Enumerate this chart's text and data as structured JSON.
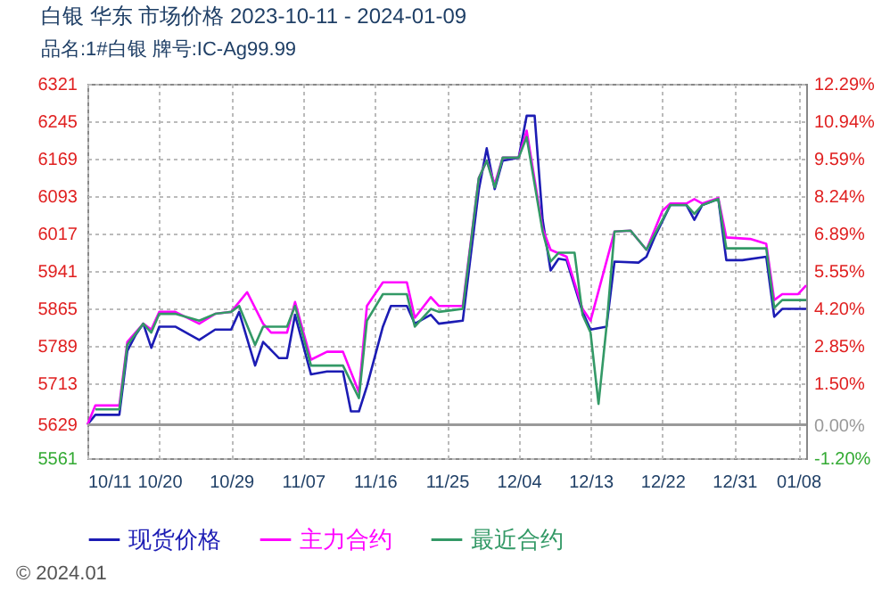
{
  "chart_data": {
    "type": "line",
    "title": "白银 华东 市场价格 2023-10-11 - 2024-01-09",
    "subtitle": "品名:1#白银 牌号:IC-Ag99.99",
    "xlim": [
      "2023-10-11",
      "2024-01-09"
    ],
    "xticks": [
      {
        "value": "2023-10-11",
        "label": "10/11"
      },
      {
        "value": "2023-10-20",
        "label": "10/20"
      },
      {
        "value": "2023-10-29",
        "label": "10/29"
      },
      {
        "value": "2023-11-07",
        "label": "11/07"
      },
      {
        "value": "2023-11-16",
        "label": "11/16"
      },
      {
        "value": "2023-11-25",
        "label": "11/25"
      },
      {
        "value": "2023-12-04",
        "label": "12/04"
      },
      {
        "value": "2023-12-13",
        "label": "12/13"
      },
      {
        "value": "2023-12-22",
        "label": "12/22"
      },
      {
        "value": "2023-12-31",
        "label": "12/31"
      },
      {
        "value": "2024-01-08",
        "label": "01/08"
      }
    ],
    "ylim": [
      5561,
      6321
    ],
    "yticks": [
      5561,
      5629,
      5713,
      5789,
      5865,
      5941,
      6017,
      6093,
      6169,
      6245,
      6321
    ],
    "y2lim": [
      -1.2,
      12.29
    ],
    "y2ticks": [
      {
        "value": -1.2,
        "label": "-1.20%"
      },
      {
        "value": 0,
        "label": "0.00%"
      },
      {
        "value": 1.5,
        "label": "1.50%"
      },
      {
        "value": 2.85,
        "label": "2.85%"
      },
      {
        "value": 4.2,
        "label": "4.20%"
      },
      {
        "value": 5.55,
        "label": "5.55%"
      },
      {
        "value": 6.89,
        "label": "6.89%"
      },
      {
        "value": 8.24,
        "label": "8.24%"
      },
      {
        "value": 9.59,
        "label": "9.59%"
      },
      {
        "value": 10.94,
        "label": "10.94%"
      },
      {
        "value": 12.29,
        "label": "12.29%"
      }
    ],
    "grid": true,
    "legend": "bottom",
    "ref_lines": [
      {
        "axis": "y",
        "value": 5629,
        "color": "#999999"
      }
    ],
    "annotations": [
      "© 2024.01"
    ],
    "series": [
      {
        "name": "现货价格",
        "color": "#1c1cb4",
        "x": [
          "2023-10-11",
          "2023-10-12",
          "2023-10-15",
          "2023-10-16",
          "2023-10-17",
          "2023-10-18",
          "2023-10-19",
          "2023-10-20",
          "2023-10-22",
          "2023-10-25",
          "2023-10-27",
          "2023-10-29",
          "2023-10-30",
          "2023-11-01",
          "2023-11-02",
          "2023-11-04",
          "2023-11-05",
          "2023-11-06",
          "2023-11-08",
          "2023-11-10",
          "2023-11-12",
          "2023-11-13",
          "2023-11-14",
          "2023-11-15",
          "2023-11-17",
          "2023-11-18",
          "2023-11-20",
          "2023-11-21",
          "2023-11-23",
          "2023-11-24",
          "2023-11-27",
          "2023-11-29",
          "2023-11-30",
          "2023-12-01",
          "2023-12-02",
          "2023-12-04",
          "2023-12-05",
          "2023-12-06",
          "2023-12-07",
          "2023-12-08",
          "2023-12-09",
          "2023-12-10",
          "2023-12-12",
          "2023-12-13",
          "2023-12-15",
          "2023-12-16",
          "2023-12-19",
          "2023-12-20",
          "2023-12-21",
          "2023-12-23",
          "2023-12-25",
          "2023-12-26",
          "2023-12-27",
          "2023-12-29",
          "2023-12-30",
          "2024-01-01",
          "2024-01-04",
          "2024-01-05",
          "2024-01-06",
          "2024-01-09"
        ],
        "values": [
          5629,
          5649,
          5649,
          5779,
          5810,
          5834,
          5785,
          5828,
          5828,
          5801,
          5822,
          5822,
          5858,
          5749,
          5797,
          5764,
          5764,
          5852,
          5731,
          5737,
          5737,
          5656,
          5656,
          5707,
          5828,
          5870,
          5870,
          5834,
          5852,
          5834,
          5840,
          6105,
          6190,
          6107,
          6165,
          6171,
          6256,
          6256,
          6045,
          5942,
          5966,
          5963,
          5858,
          5822,
          5828,
          5960,
          5958,
          5970,
          6009,
          6075,
          6075,
          6045,
          6075,
          6087,
          5963,
          5963,
          5970,
          5848,
          5864,
          5864
        ]
      },
      {
        "name": "主力合约",
        "color": "#ff00ff",
        "x": [
          "2023-10-11",
          "2023-10-12",
          "2023-10-15",
          "2023-10-16",
          "2023-10-18",
          "2023-10-19",
          "2023-10-20",
          "2023-10-22",
          "2023-10-25",
          "2023-10-27",
          "2023-10-29",
          "2023-10-31",
          "2023-11-02",
          "2023-11-03",
          "2023-11-05",
          "2023-11-06",
          "2023-11-08",
          "2023-11-10",
          "2023-11-12",
          "2023-11-14",
          "2023-11-15",
          "2023-11-17",
          "2023-11-20",
          "2023-11-21",
          "2023-11-23",
          "2023-11-24",
          "2023-11-27",
          "2023-11-29",
          "2023-11-30",
          "2023-12-01",
          "2023-12-02",
          "2023-12-04",
          "2023-12-05",
          "2023-12-07",
          "2023-12-08",
          "2023-12-10",
          "2023-12-12",
          "2023-12-13",
          "2023-12-16",
          "2023-12-18",
          "2023-12-20",
          "2023-12-22",
          "2023-12-23",
          "2023-12-25",
          "2023-12-26",
          "2023-12-27",
          "2023-12-29",
          "2023-12-30",
          "2024-01-02",
          "2024-01-04",
          "2024-01-05",
          "2024-01-06",
          "2024-01-08",
          "2024-01-09"
        ],
        "values": [
          5629,
          5668,
          5668,
          5797,
          5834,
          5822,
          5858,
          5858,
          5834,
          5854,
          5858,
          5898,
          5834,
          5816,
          5816,
          5878,
          5761,
          5777,
          5777,
          5695,
          5870,
          5918,
          5918,
          5846,
          5888,
          5870,
          5870,
          6129,
          6165,
          6117,
          6171,
          6171,
          6226,
          6027,
          5984,
          5970,
          5864,
          5840,
          6021,
          6023,
          5984,
          6063,
          6078,
          6078,
          6087,
          6078,
          6089,
          6009,
          6006,
          5996,
          5882,
          5894,
          5894,
          5912
        ]
      },
      {
        "name": "最近合约",
        "color": "#339966",
        "x": [
          "2023-10-12",
          "2023-10-15",
          "2023-10-16",
          "2023-10-18",
          "2023-10-19",
          "2023-10-20",
          "2023-10-22",
          "2023-10-25",
          "2023-10-27",
          "2023-10-29",
          "2023-10-30",
          "2023-11-01",
          "2023-11-02",
          "2023-11-05",
          "2023-11-06",
          "2023-11-08",
          "2023-11-10",
          "2023-11-12",
          "2023-11-14",
          "2023-11-15",
          "2023-11-17",
          "2023-11-20",
          "2023-11-21",
          "2023-11-23",
          "2023-11-24",
          "2023-11-27",
          "2023-11-29",
          "2023-11-30",
          "2023-12-01",
          "2023-12-02",
          "2023-12-04",
          "2023-12-05",
          "2023-12-07",
          "2023-12-08",
          "2023-12-09",
          "2023-12-11",
          "2023-12-12",
          "2023-12-13",
          "2023-12-14",
          "2023-12-15",
          "2023-12-16",
          "2023-12-18",
          "2023-12-20",
          "2023-12-23",
          "2023-12-25",
          "2023-12-26",
          "2023-12-27",
          "2023-12-29",
          "2023-12-30",
          "2024-01-04",
          "2024-01-05",
          "2024-01-06",
          "2024-01-09"
        ],
        "values": [
          5660,
          5660,
          5791,
          5834,
          5816,
          5854,
          5854,
          5840,
          5854,
          5858,
          5870,
          5791,
          5828,
          5828,
          5870,
          5749,
          5749,
          5749,
          5683,
          5840,
          5894,
          5894,
          5828,
          5864,
          5858,
          5864,
          6129,
          6165,
          6111,
          6171,
          6171,
          6213,
          6021,
          5960,
          5978,
          5978,
          5852,
          5816,
          5671,
          5828,
          6021,
          6023,
          5984,
          6075,
          6075,
          6057,
          6075,
          6087,
          5987,
          5987,
          5866,
          5882,
          5882
        ]
      }
    ]
  }
}
